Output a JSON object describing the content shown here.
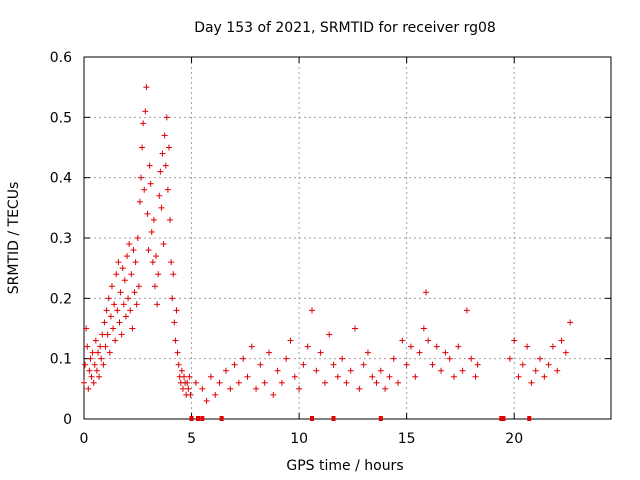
{
  "chart_data": {
    "type": "scatter",
    "title": "Day 153 of 2021, SRMTID for receiver rg08",
    "xlabel": "GPS time / hours",
    "ylabel": "SRMTID / TECUs",
    "xlim": [
      0,
      24.5
    ],
    "ylim": [
      0,
      0.6
    ],
    "xticks": [
      0,
      5,
      10,
      15,
      20
    ],
    "yticks": [
      0,
      0.1,
      0.2,
      0.3,
      0.4,
      0.5,
      0.6
    ],
    "xtick_labels": [
      "0",
      "5",
      "10",
      "15",
      "20"
    ],
    "ytick_labels": [
      "0",
      "0.1",
      "0.2",
      "0.3",
      "0.4",
      "0.5",
      "0.6"
    ],
    "grid": true,
    "marker": "+",
    "series_color": "#e00000",
    "data_gaps_x": [
      5.0,
      5.3,
      5.5,
      6.4,
      10.6,
      11.6,
      13.8,
      19.4,
      19.5,
      20.7
    ],
    "points": [
      [
        0.0,
        0.06
      ],
      [
        0.05,
        0.09
      ],
      [
        0.1,
        0.15
      ],
      [
        0.15,
        0.12
      ],
      [
        0.2,
        0.05
      ],
      [
        0.25,
        0.08
      ],
      [
        0.3,
        0.1
      ],
      [
        0.35,
        0.07
      ],
      [
        0.4,
        0.11
      ],
      [
        0.45,
        0.06
      ],
      [
        0.5,
        0.09
      ],
      [
        0.55,
        0.13
      ],
      [
        0.6,
        0.08
      ],
      [
        0.65,
        0.11
      ],
      [
        0.7,
        0.07
      ],
      [
        0.75,
        0.12
      ],
      [
        0.8,
        0.1
      ],
      [
        0.85,
        0.14
      ],
      [
        0.9,
        0.09
      ],
      [
        0.95,
        0.16
      ],
      [
        1.0,
        0.12
      ],
      [
        1.05,
        0.18
      ],
      [
        1.1,
        0.14
      ],
      [
        1.15,
        0.2
      ],
      [
        1.2,
        0.11
      ],
      [
        1.25,
        0.17
      ],
      [
        1.3,
        0.22
      ],
      [
        1.35,
        0.15
      ],
      [
        1.4,
        0.19
      ],
      [
        1.45,
        0.13
      ],
      [
        1.5,
        0.24
      ],
      [
        1.55,
        0.18
      ],
      [
        1.6,
        0.26
      ],
      [
        1.65,
        0.16
      ],
      [
        1.7,
        0.21
      ],
      [
        1.75,
        0.14
      ],
      [
        1.8,
        0.25
      ],
      [
        1.85,
        0.19
      ],
      [
        1.9,
        0.23
      ],
      [
        1.95,
        0.17
      ],
      [
        2.0,
        0.27
      ],
      [
        2.05,
        0.2
      ],
      [
        2.1,
        0.29
      ],
      [
        2.15,
        0.18
      ],
      [
        2.2,
        0.24
      ],
      [
        2.25,
        0.15
      ],
      [
        2.3,
        0.28
      ],
      [
        2.35,
        0.21
      ],
      [
        2.4,
        0.26
      ],
      [
        2.45,
        0.19
      ],
      [
        2.5,
        0.3
      ],
      [
        2.55,
        0.22
      ],
      [
        2.6,
        0.36
      ],
      [
        2.65,
        0.4
      ],
      [
        2.7,
        0.45
      ],
      [
        2.75,
        0.49
      ],
      [
        2.8,
        0.38
      ],
      [
        2.85,
        0.51
      ],
      [
        2.9,
        0.55
      ],
      [
        2.95,
        0.34
      ],
      [
        3.0,
        0.28
      ],
      [
        3.05,
        0.42
      ],
      [
        3.1,
        0.39
      ],
      [
        3.15,
        0.31
      ],
      [
        3.2,
        0.26
      ],
      [
        3.25,
        0.33
      ],
      [
        3.3,
        0.22
      ],
      [
        3.35,
        0.27
      ],
      [
        3.4,
        0.19
      ],
      [
        3.45,
        0.24
      ],
      [
        3.5,
        0.37
      ],
      [
        3.55,
        0.41
      ],
      [
        3.6,
        0.35
      ],
      [
        3.65,
        0.44
      ],
      [
        3.7,
        0.29
      ],
      [
        3.75,
        0.47
      ],
      [
        3.8,
        0.42
      ],
      [
        3.85,
        0.5
      ],
      [
        3.9,
        0.38
      ],
      [
        3.95,
        0.45
      ],
      [
        4.0,
        0.33
      ],
      [
        4.05,
        0.26
      ],
      [
        4.1,
        0.2
      ],
      [
        4.15,
        0.24
      ],
      [
        4.2,
        0.16
      ],
      [
        4.25,
        0.13
      ],
      [
        4.3,
        0.18
      ],
      [
        4.35,
        0.11
      ],
      [
        4.4,
        0.09
      ],
      [
        4.45,
        0.07
      ],
      [
        4.5,
        0.06
      ],
      [
        4.55,
        0.08
      ],
      [
        4.6,
        0.05
      ],
      [
        4.65,
        0.07
      ],
      [
        4.7,
        0.06
      ],
      [
        4.75,
        0.04
      ],
      [
        4.8,
        0.06
      ],
      [
        4.85,
        0.05
      ],
      [
        4.9,
        0.07
      ],
      [
        4.95,
        0.04
      ],
      [
        5.2,
        0.06
      ],
      [
        5.5,
        0.05
      ],
      [
        5.7,
        0.03
      ],
      [
        5.9,
        0.07
      ],
      [
        6.1,
        0.04
      ],
      [
        6.3,
        0.06
      ],
      [
        6.6,
        0.08
      ],
      [
        6.8,
        0.05
      ],
      [
        7.0,
        0.09
      ],
      [
        7.2,
        0.06
      ],
      [
        7.4,
        0.1
      ],
      [
        7.6,
        0.07
      ],
      [
        7.8,
        0.12
      ],
      [
        8.0,
        0.05
      ],
      [
        8.2,
        0.09
      ],
      [
        8.4,
        0.06
      ],
      [
        8.6,
        0.11
      ],
      [
        8.8,
        0.04
      ],
      [
        9.0,
        0.08
      ],
      [
        9.2,
        0.06
      ],
      [
        9.4,
        0.1
      ],
      [
        9.6,
        0.13
      ],
      [
        9.8,
        0.07
      ],
      [
        10.0,
        0.05
      ],
      [
        10.2,
        0.09
      ],
      [
        10.4,
        0.12
      ],
      [
        10.6,
        0.18
      ],
      [
        10.8,
        0.08
      ],
      [
        11.0,
        0.11
      ],
      [
        11.2,
        0.06
      ],
      [
        11.4,
        0.14
      ],
      [
        11.6,
        0.09
      ],
      [
        11.8,
        0.07
      ],
      [
        12.0,
        0.1
      ],
      [
        12.2,
        0.06
      ],
      [
        12.4,
        0.08
      ],
      [
        12.6,
        0.15
      ],
      [
        12.8,
        0.05
      ],
      [
        13.0,
        0.09
      ],
      [
        13.2,
        0.11
      ],
      [
        13.4,
        0.07
      ],
      [
        13.6,
        0.06
      ],
      [
        13.8,
        0.08
      ],
      [
        14.0,
        0.05
      ],
      [
        14.2,
        0.07
      ],
      [
        14.4,
        0.1
      ],
      [
        14.6,
        0.06
      ],
      [
        14.8,
        0.13
      ],
      [
        15.0,
        0.09
      ],
      [
        15.2,
        0.12
      ],
      [
        15.4,
        0.07
      ],
      [
        15.6,
        0.11
      ],
      [
        15.8,
        0.15
      ],
      [
        15.9,
        0.21
      ],
      [
        16.0,
        0.13
      ],
      [
        16.2,
        0.09
      ],
      [
        16.4,
        0.12
      ],
      [
        16.6,
        0.08
      ],
      [
        16.8,
        0.11
      ],
      [
        17.0,
        0.1
      ],
      [
        17.2,
        0.07
      ],
      [
        17.4,
        0.12
      ],
      [
        17.6,
        0.08
      ],
      [
        17.8,
        0.18
      ],
      [
        18.0,
        0.1
      ],
      [
        18.2,
        0.07
      ],
      [
        18.3,
        0.09
      ],
      [
        19.8,
        0.1
      ],
      [
        20.0,
        0.13
      ],
      [
        20.2,
        0.07
      ],
      [
        20.4,
        0.09
      ],
      [
        20.6,
        0.12
      ],
      [
        20.8,
        0.06
      ],
      [
        21.0,
        0.08
      ],
      [
        21.2,
        0.1
      ],
      [
        21.4,
        0.07
      ],
      [
        21.6,
        0.09
      ],
      [
        21.8,
        0.12
      ],
      [
        22.0,
        0.08
      ],
      [
        22.2,
        0.13
      ],
      [
        22.4,
        0.11
      ],
      [
        22.6,
        0.16
      ]
    ]
  }
}
